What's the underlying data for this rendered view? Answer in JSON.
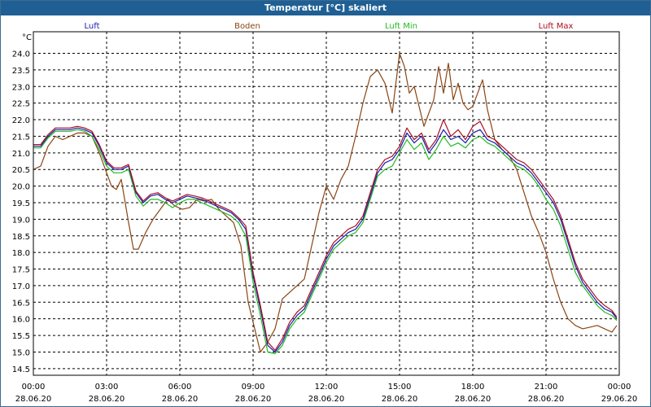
{
  "chart_data": {
    "type": "line",
    "title": "Temperatur [°C] skaliert",
    "ylabel": "°C",
    "ylim": [
      14.3,
      24.65
    ],
    "xlim": [
      0,
      24
    ],
    "yticks": [
      "24.0",
      "23.5",
      "23.0",
      "22.5",
      "22.0",
      "21.5",
      "21.0",
      "20.5",
      "20.0",
      "19.5",
      "19.0",
      "18.5",
      "18.0",
      "17.5",
      "17.0",
      "16.5",
      "16.0",
      "15.5",
      "15.0",
      "14.5"
    ],
    "xticks": [
      {
        "t": 0,
        "time": "00:00",
        "date": "28.06.20"
      },
      {
        "t": 3,
        "time": "03:00",
        "date": "28.06.20"
      },
      {
        "t": 6,
        "time": "06:00",
        "date": "28.06.20"
      },
      {
        "t": 9,
        "time": "09:00",
        "date": "28.06.20"
      },
      {
        "t": 12,
        "time": "12:00",
        "date": "28.06.20"
      },
      {
        "t": 15,
        "time": "15:00",
        "date": "28.06.20"
      },
      {
        "t": 18,
        "time": "18:00",
        "date": "28.06.20"
      },
      {
        "t": 21,
        "time": "21:00",
        "date": "28.06.20"
      },
      {
        "t": 24,
        "time": "00:00",
        "date": "29.06.20"
      }
    ],
    "series": [
      {
        "name": "Luft",
        "color": "#1a1ab0",
        "x": [
          0,
          0.3,
          0.6,
          0.9,
          1.2,
          1.5,
          1.8,
          2.1,
          2.4,
          2.7,
          3.0,
          3.3,
          3.6,
          3.9,
          4.2,
          4.5,
          4.8,
          5.1,
          5.4,
          5.7,
          6.0,
          6.3,
          6.6,
          6.9,
          7.2,
          7.5,
          7.8,
          8.1,
          8.4,
          8.7,
          9.0,
          9.3,
          9.6,
          9.9,
          10.2,
          10.5,
          10.8,
          11.1,
          11.4,
          11.7,
          12.0,
          12.3,
          12.6,
          12.9,
          13.2,
          13.5,
          13.8,
          14.1,
          14.4,
          14.7,
          15.0,
          15.3,
          15.6,
          15.9,
          16.2,
          16.5,
          16.8,
          17.1,
          17.4,
          17.7,
          18.0,
          18.3,
          18.6,
          18.9,
          19.2,
          19.5,
          19.8,
          20.1,
          20.4,
          20.7,
          21.0,
          21.3,
          21.6,
          21.9,
          22.2,
          22.5,
          22.8,
          23.1,
          23.4,
          23.7,
          23.9
        ],
        "values": [
          21.2,
          21.2,
          21.5,
          21.7,
          21.7,
          21.7,
          21.75,
          21.7,
          21.6,
          21.2,
          20.7,
          20.5,
          20.5,
          20.6,
          19.8,
          19.5,
          19.7,
          19.75,
          19.6,
          19.5,
          19.6,
          19.7,
          19.65,
          19.6,
          19.5,
          19.4,
          19.3,
          19.2,
          19.0,
          18.7,
          17.3,
          16.3,
          15.2,
          15.0,
          15.3,
          15.8,
          16.1,
          16.3,
          16.8,
          17.3,
          17.8,
          18.2,
          18.4,
          18.6,
          18.7,
          19.0,
          19.7,
          20.4,
          20.7,
          20.8,
          21.1,
          21.6,
          21.3,
          21.5,
          21.0,
          21.3,
          21.7,
          21.4,
          21.5,
          21.3,
          21.6,
          21.7,
          21.4,
          21.3,
          21.1,
          20.9,
          20.7,
          20.6,
          20.4,
          20.1,
          19.8,
          19.5,
          19.0,
          18.3,
          17.6,
          17.1,
          16.8,
          16.5,
          16.3,
          16.2,
          16.0
        ]
      },
      {
        "name": "Boden",
        "color": "#8b4513",
        "x": [
          0,
          0.3,
          0.6,
          0.9,
          1.2,
          1.5,
          1.8,
          2.1,
          2.4,
          2.7,
          3.0,
          3.2,
          3.4,
          3.6,
          3.9,
          4.1,
          4.3,
          4.6,
          4.9,
          5.2,
          5.5,
          5.8,
          6.1,
          6.4,
          6.7,
          7.0,
          7.3,
          7.6,
          7.9,
          8.2,
          8.5,
          8.8,
          9.0,
          9.3,
          9.6,
          9.9,
          10.2,
          10.5,
          10.8,
          11.1,
          11.4,
          11.7,
          12.0,
          12.3,
          12.6,
          12.9,
          13.2,
          13.5,
          13.8,
          14.1,
          14.4,
          14.7,
          15.0,
          15.2,
          15.4,
          15.6,
          15.8,
          16.0,
          16.2,
          16.4,
          16.6,
          16.8,
          17.0,
          17.2,
          17.4,
          17.6,
          17.8,
          18.0,
          18.2,
          18.4,
          18.6,
          18.9,
          19.2,
          19.5,
          19.8,
          20.1,
          20.4,
          20.7,
          21.0,
          21.3,
          21.6,
          21.9,
          22.2,
          22.5,
          22.8,
          23.1,
          23.4,
          23.7,
          23.9
        ],
        "values": [
          20.5,
          20.6,
          21.2,
          21.5,
          21.4,
          21.5,
          21.6,
          21.6,
          21.5,
          21.0,
          20.4,
          20.0,
          19.9,
          20.2,
          18.9,
          18.1,
          18.1,
          18.6,
          19.0,
          19.3,
          19.6,
          19.4,
          19.3,
          19.35,
          19.6,
          19.55,
          19.6,
          19.3,
          19.1,
          18.9,
          18.2,
          16.5,
          15.9,
          15.0,
          15.3,
          15.7,
          16.6,
          16.8,
          17.0,
          17.2,
          18.2,
          19.2,
          20.0,
          19.6,
          20.2,
          20.6,
          21.5,
          22.5,
          23.3,
          23.5,
          23.1,
          22.2,
          24.0,
          23.6,
          22.8,
          23.0,
          22.4,
          21.8,
          22.2,
          22.6,
          23.6,
          22.8,
          23.7,
          22.6,
          23.1,
          22.5,
          22.3,
          22.4,
          22.8,
          23.2,
          22.3,
          21.4,
          21.1,
          20.9,
          20.5,
          19.8,
          19.1,
          18.6,
          18.0,
          17.2,
          16.5,
          16.0,
          15.8,
          15.7,
          15.75,
          15.8,
          15.7,
          15.6,
          15.8
        ]
      },
      {
        "name": "Luft Min",
        "color": "#22bb22",
        "x": [
          0,
          0.3,
          0.6,
          0.9,
          1.2,
          1.5,
          1.8,
          2.1,
          2.4,
          2.7,
          3.0,
          3.3,
          3.6,
          3.9,
          4.2,
          4.5,
          4.8,
          5.1,
          5.4,
          5.7,
          6.0,
          6.3,
          6.6,
          6.9,
          7.2,
          7.5,
          7.8,
          8.1,
          8.4,
          8.7,
          9.0,
          9.3,
          9.6,
          9.9,
          10.2,
          10.5,
          10.8,
          11.1,
          11.4,
          11.7,
          12.0,
          12.3,
          12.6,
          12.9,
          13.2,
          13.5,
          13.8,
          14.1,
          14.4,
          14.7,
          15.0,
          15.3,
          15.6,
          15.9,
          16.2,
          16.5,
          16.8,
          17.1,
          17.4,
          17.7,
          18.0,
          18.3,
          18.6,
          18.9,
          19.2,
          19.5,
          19.8,
          20.1,
          20.4,
          20.7,
          21.0,
          21.3,
          21.6,
          21.9,
          22.2,
          22.5,
          22.8,
          23.1,
          23.4,
          23.7,
          23.9
        ],
        "values": [
          21.15,
          21.15,
          21.45,
          21.65,
          21.65,
          21.65,
          21.7,
          21.65,
          21.5,
          21.1,
          20.6,
          20.4,
          20.4,
          20.5,
          19.7,
          19.4,
          19.6,
          19.6,
          19.5,
          19.35,
          19.5,
          19.6,
          19.6,
          19.5,
          19.4,
          19.3,
          19.2,
          19.1,
          18.9,
          18.5,
          17.1,
          16.1,
          15.0,
          14.95,
          15.2,
          15.7,
          16.0,
          16.2,
          16.7,
          17.2,
          17.7,
          18.1,
          18.3,
          18.5,
          18.6,
          18.9,
          19.6,
          20.3,
          20.5,
          20.6,
          21.0,
          21.4,
          21.1,
          21.3,
          20.8,
          21.1,
          21.5,
          21.2,
          21.3,
          21.15,
          21.4,
          21.5,
          21.3,
          21.2,
          21.0,
          20.8,
          20.6,
          20.5,
          20.3,
          20.0,
          19.6,
          19.3,
          18.8,
          18.1,
          17.4,
          17.0,
          16.7,
          16.4,
          16.2,
          16.1,
          15.95
        ]
      },
      {
        "name": "Luft Max",
        "color": "#aa1020",
        "x": [
          0,
          0.3,
          0.6,
          0.9,
          1.2,
          1.5,
          1.8,
          2.1,
          2.4,
          2.7,
          3.0,
          3.3,
          3.6,
          3.9,
          4.2,
          4.5,
          4.8,
          5.1,
          5.4,
          5.7,
          6.0,
          6.3,
          6.6,
          6.9,
          7.2,
          7.5,
          7.8,
          8.1,
          8.4,
          8.7,
          9.0,
          9.3,
          9.6,
          9.9,
          10.2,
          10.5,
          10.8,
          11.1,
          11.4,
          11.7,
          12.0,
          12.3,
          12.6,
          12.9,
          13.2,
          13.5,
          13.8,
          14.1,
          14.4,
          14.7,
          15.0,
          15.3,
          15.6,
          15.9,
          16.2,
          16.5,
          16.8,
          17.1,
          17.4,
          17.7,
          18.0,
          18.3,
          18.6,
          18.9,
          19.2,
          19.5,
          19.8,
          20.1,
          20.4,
          20.7,
          21.0,
          21.3,
          21.6,
          21.9,
          22.2,
          22.5,
          22.8,
          23.1,
          23.4,
          23.7,
          23.9
        ],
        "values": [
          21.25,
          21.25,
          21.55,
          21.75,
          21.75,
          21.75,
          21.8,
          21.75,
          21.65,
          21.25,
          20.75,
          20.55,
          20.55,
          20.65,
          19.85,
          19.55,
          19.75,
          19.8,
          19.65,
          19.55,
          19.65,
          19.75,
          19.7,
          19.65,
          19.55,
          19.45,
          19.35,
          19.25,
          19.05,
          18.8,
          17.4,
          16.4,
          15.3,
          15.05,
          15.4,
          15.9,
          16.2,
          16.4,
          16.9,
          17.4,
          17.9,
          18.3,
          18.5,
          18.7,
          18.8,
          19.1,
          19.8,
          20.5,
          20.8,
          20.9,
          21.2,
          21.75,
          21.4,
          21.6,
          21.1,
          21.4,
          22.0,
          21.5,
          21.7,
          21.4,
          21.8,
          21.95,
          21.5,
          21.4,
          21.2,
          21.0,
          20.8,
          20.7,
          20.5,
          20.2,
          19.9,
          19.6,
          19.1,
          18.4,
          17.7,
          17.2,
          16.9,
          16.6,
          16.4,
          16.25,
          16.05
        ]
      }
    ]
  }
}
